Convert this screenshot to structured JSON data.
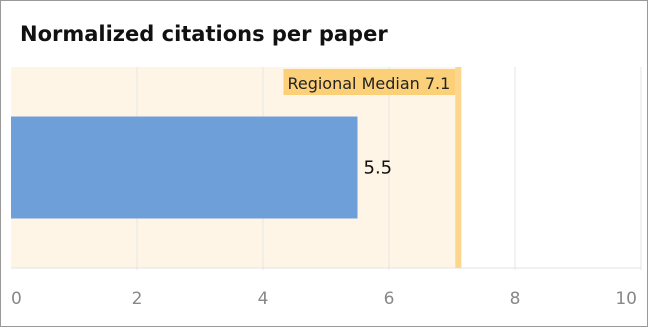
{
  "chart_data": {
    "type": "bar",
    "orientation": "horizontal",
    "title": "Normalized citations per paper",
    "categories": [
      ""
    ],
    "values": [
      5.5
    ],
    "value_labels": [
      "5.5"
    ],
    "xlim": [
      0,
      10
    ],
    "x_ticks": [
      0,
      2,
      4,
      6,
      8,
      10
    ],
    "grid": true,
    "reference": {
      "label": "Regional Median 7.1",
      "value": 7.1
    },
    "colors": {
      "bar": "#6f9fd9",
      "reference_band": "#fff5e6",
      "reference_line": "#fbd68c",
      "reference_label_bg": "#fbd078",
      "grid": "#e6e6e6"
    }
  }
}
